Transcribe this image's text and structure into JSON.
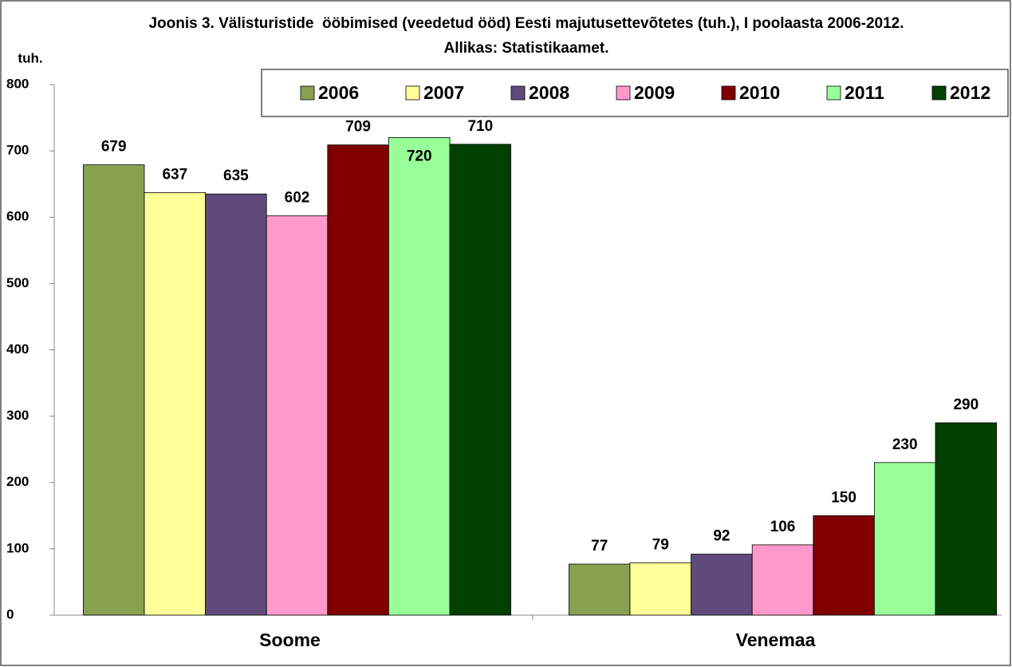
{
  "chart_data": {
    "type": "bar",
    "title": "Joonis 3. Välisturistide  ööbimised (veedetud ööd) Eesti majutusettevõtetes (tuh.), I poolaasta 2006-2012. Allikas: Statistikaamet.",
    "y_label": "tuh.",
    "categories": [
      "Soome",
      "Venemaa"
    ],
    "series": [
      {
        "name": "2006",
        "color": "#88a050",
        "values": [
          679,
          77
        ]
      },
      {
        "name": "2007",
        "color": "#ffff99",
        "values": [
          637,
          79
        ]
      },
      {
        "name": "2008",
        "color": "#604a7b",
        "values": [
          635,
          92
        ]
      },
      {
        "name": "2009",
        "color": "#ff99cc",
        "values": [
          602,
          106
        ]
      },
      {
        "name": "2010",
        "color": "#800000",
        "values": [
          709,
          150
        ]
      },
      {
        "name": "2011",
        "color": "#99ff99",
        "values": [
          720,
          230
        ]
      },
      {
        "name": "2012",
        "color": "#004000",
        "values": [
          710,
          290
        ]
      }
    ],
    "ylim": [
      0,
      800
    ],
    "yticks": [
      0,
      100,
      200,
      300,
      400,
      500,
      600,
      700,
      800
    ]
  }
}
